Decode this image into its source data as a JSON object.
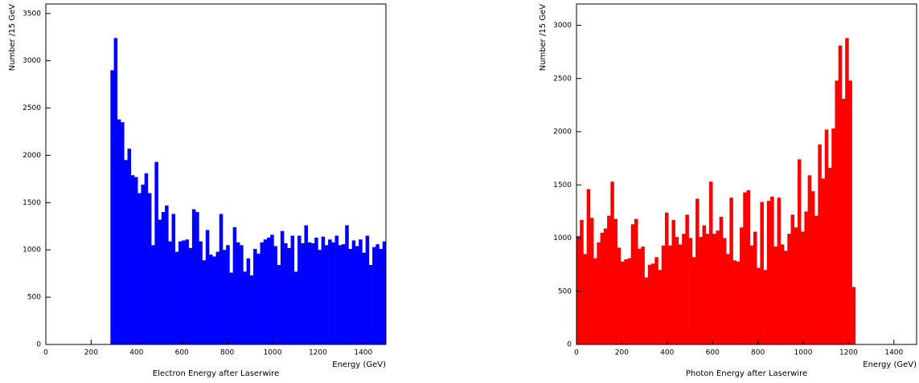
{
  "chart_data": [
    {
      "type": "histogram",
      "title": "Electron Energy after Laserwire",
      "x_label": "Energy (GeV)",
      "y_label": "Number /15 GeV",
      "color": "#0000ff",
      "bins": [
        0,
        15,
        30,
        45,
        60,
        75,
        90,
        105,
        120,
        135,
        150,
        165,
        180,
        195,
        210,
        225,
        240,
        255,
        270,
        285,
        300,
        315,
        330,
        345,
        360,
        375,
        390,
        405,
        420,
        435,
        450,
        465,
        480,
        495,
        510,
        525,
        540,
        555,
        570,
        585,
        600,
        615,
        630,
        645,
        660,
        675,
        690,
        705,
        720,
        735,
        750,
        765,
        780,
        795,
        810,
        825,
        840,
        855,
        870,
        885,
        900,
        915,
        930,
        945,
        960,
        975,
        990,
        1005,
        1020,
        1035,
        1050,
        1065,
        1080,
        1095,
        1110,
        1125,
        1140,
        1155,
        1170,
        1185,
        1200,
        1215,
        1230,
        1245,
        1260,
        1275,
        1290,
        1305,
        1320,
        1335,
        1350,
        1365,
        1380,
        1395,
        1410,
        1425,
        1440,
        1455,
        1470,
        1485,
        1500
      ],
      "counts": [
        0,
        0,
        0,
        0,
        0,
        0,
        0,
        0,
        0,
        0,
        0,
        0,
        0,
        0,
        0,
        0,
        0,
        0,
        0,
        2900,
        3240,
        2380,
        2350,
        1950,
        2070,
        1790,
        1770,
        1600,
        1690,
        1810,
        1600,
        1050,
        1930,
        1320,
        1400,
        1470,
        1090,
        1380,
        980,
        1090,
        1100,
        1110,
        1020,
        1430,
        1400,
        1090,
        890,
        1210,
        950,
        930,
        980,
        1380,
        1000,
        1050,
        760,
        1240,
        1080,
        1050,
        770,
        910,
        730,
        1010,
        960,
        1080,
        1110,
        1130,
        1160,
        1040,
        840,
        1200,
        1070,
        1020,
        1150,
        770,
        1150,
        1070,
        1260,
        1080,
        1070,
        1130,
        1000,
        1140,
        1050,
        1110,
        1080,
        1150,
        1050,
        1060,
        1260,
        1010,
        1100,
        1040,
        1110,
        970,
        1150,
        840,
        1030,
        1060,
        1010,
        1090
      ],
      "xlim": [
        0,
        1500
      ],
      "ylim": [
        0,
        3600
      ],
      "xticks": [
        0,
        200,
        400,
        600,
        800,
        1000,
        1200,
        1400
      ],
      "yticks": [
        0,
        500,
        1000,
        1500,
        2000,
        2500,
        3000,
        3500
      ]
    },
    {
      "type": "histogram",
      "title": "Photon Energy after Laserwire",
      "x_label": "Energy (GeV)",
      "y_label": "Number /15 GeV",
      "color": "#ff0000",
      "bins": [
        0,
        15,
        30,
        45,
        60,
        75,
        90,
        105,
        120,
        135,
        150,
        165,
        180,
        195,
        210,
        225,
        240,
        255,
        270,
        285,
        300,
        315,
        330,
        345,
        360,
        375,
        390,
        405,
        420,
        435,
        450,
        465,
        480,
        495,
        510,
        525,
        540,
        555,
        570,
        585,
        600,
        615,
        630,
        645,
        660,
        675,
        690,
        705,
        720,
        735,
        750,
        765,
        780,
        795,
        810,
        825,
        840,
        855,
        870,
        885,
        900,
        915,
        930,
        945,
        960,
        975,
        990,
        1005,
        1020,
        1035,
        1050,
        1065,
        1080,
        1095,
        1110,
        1125,
        1140,
        1155,
        1170,
        1185,
        1200,
        1215,
        1230,
        1245,
        1260,
        1275,
        1290,
        1305,
        1320,
        1335,
        1350,
        1365,
        1380,
        1395,
        1410,
        1425,
        1440,
        1455,
        1470,
        1485,
        1500
      ],
      "counts": [
        1020,
        1170,
        850,
        1460,
        1190,
        810,
        960,
        1050,
        1090,
        1210,
        1530,
        1180,
        910,
        780,
        800,
        810,
        1130,
        1180,
        900,
        920,
        630,
        750,
        760,
        820,
        700,
        930,
        1240,
        930,
        1170,
        1010,
        940,
        1040,
        1220,
        1000,
        820,
        1370,
        1010,
        1120,
        1040,
        1530,
        1040,
        1070,
        1200,
        1000,
        850,
        1380,
        790,
        780,
        1100,
        1430,
        1450,
        930,
        1060,
        720,
        1340,
        700,
        1350,
        1390,
        920,
        1380,
        940,
        880,
        1040,
        1220,
        1100,
        1740,
        1060,
        1250,
        1590,
        1440,
        1210,
        1880,
        1560,
        2020,
        1660,
        2030,
        2480,
        2810,
        2310,
        2880,
        2480,
        540,
        0,
        0,
        0,
        0,
        0,
        0,
        0,
        0,
        0,
        0,
        0,
        0,
        0,
        0,
        0,
        0,
        0,
        0
      ],
      "xlim": [
        0,
        1500
      ],
      "ylim": [
        0,
        3200
      ],
      "xticks": [
        0,
        200,
        400,
        600,
        800,
        1000,
        1200,
        1400
      ],
      "yticks": [
        0,
        500,
        1000,
        1500,
        2000,
        2500,
        3000
      ]
    }
  ]
}
